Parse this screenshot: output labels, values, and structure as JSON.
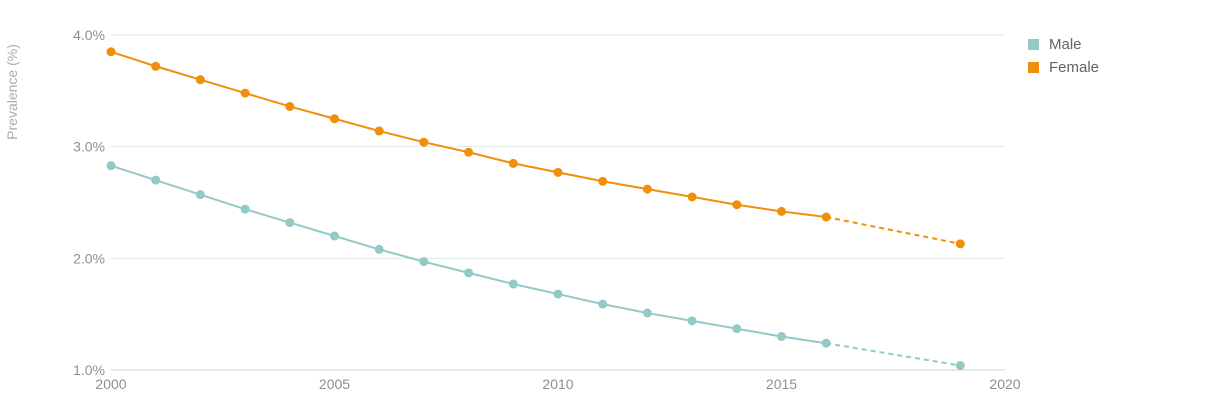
{
  "chart_data": {
    "type": "line",
    "title": "",
    "xlabel": "",
    "ylabel": "Prevalence (%)",
    "xlim": [
      2000,
      2020
    ],
    "ylim": [
      1.0,
      4.0
    ],
    "x_ticks": [
      2000,
      2005,
      2010,
      2015,
      2020
    ],
    "x_tick_labels": [
      "2000",
      "2005",
      "2010",
      "2015",
      "2020"
    ],
    "y_ticks": [
      1.0,
      2.0,
      3.0,
      4.0
    ],
    "y_tick_labels": [
      "1.0%",
      "2.0%",
      "3.0%",
      "4.0%"
    ],
    "grid": "horizontal",
    "legend_position": "top-right",
    "series": [
      {
        "name": "Male",
        "color": "#93c9c6",
        "x": [
          2000,
          2001,
          2002,
          2003,
          2004,
          2005,
          2006,
          2007,
          2008,
          2009,
          2010,
          2011,
          2012,
          2013,
          2014,
          2015,
          2016,
          2019
        ],
        "values": [
          2.83,
          2.7,
          2.57,
          2.44,
          2.32,
          2.2,
          2.08,
          1.97,
          1.87,
          1.77,
          1.68,
          1.59,
          1.51,
          1.44,
          1.37,
          1.3,
          1.24,
          1.04
        ],
        "dashed_from_x": 2016
      },
      {
        "name": "Female",
        "color": "#ef8f0b",
        "x": [
          2000,
          2001,
          2002,
          2003,
          2004,
          2005,
          2006,
          2007,
          2008,
          2009,
          2010,
          2011,
          2012,
          2013,
          2014,
          2015,
          2016,
          2019
        ],
        "values": [
          3.85,
          3.72,
          3.6,
          3.48,
          3.36,
          3.25,
          3.14,
          3.04,
          2.95,
          2.85,
          2.77,
          2.69,
          2.62,
          2.55,
          2.48,
          2.42,
          2.37,
          2.13
        ],
        "dashed_from_x": 2016
      }
    ]
  },
  "legend": {
    "items": [
      {
        "label": "Male",
        "color": "#93c9c6"
      },
      {
        "label": "Female",
        "color": "#ef8f0b"
      }
    ]
  }
}
